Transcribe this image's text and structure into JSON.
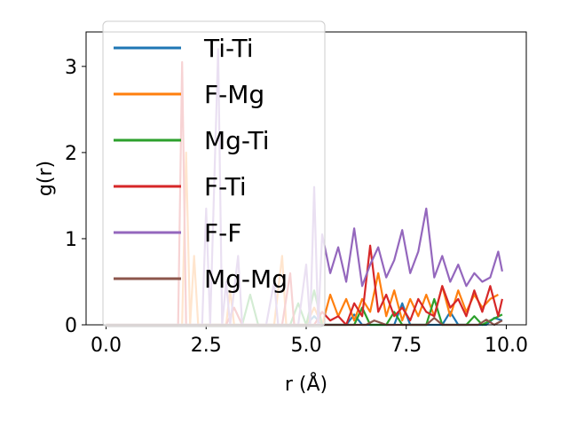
{
  "chart_data": {
    "type": "line",
    "title": "",
    "xlabel": "r (Å)",
    "ylabel": "g(r)",
    "xlim": [
      -0.5,
      10.5
    ],
    "ylim": [
      0,
      3.4
    ],
    "xticks": [
      {
        "value": 0.0,
        "label": "0.0"
      },
      {
        "value": 2.5,
        "label": "2.5"
      },
      {
        "value": 5.0,
        "label": "5.0"
      },
      {
        "value": 7.5,
        "label": "7.5"
      },
      {
        "value": 10.0,
        "label": "10.0"
      }
    ],
    "yticks": [
      {
        "value": 0,
        "label": "0"
      },
      {
        "value": 1,
        "label": "1"
      },
      {
        "value": 2,
        "label": "2"
      },
      {
        "value": 3,
        "label": "3"
      }
    ],
    "grid": false,
    "legend_position": "upper-left",
    "series": [
      {
        "name": "Ti-Ti",
        "color": "#1f77b4",
        "points": [
          [
            0,
            0
          ],
          [
            5.0,
            0
          ],
          [
            5.2,
            0.1
          ],
          [
            5.4,
            0
          ],
          [
            6.0,
            0
          ],
          [
            6.2,
            0.12
          ],
          [
            6.4,
            0
          ],
          [
            7.2,
            0
          ],
          [
            7.4,
            0.25
          ],
          [
            7.6,
            0
          ],
          [
            8.4,
            0
          ],
          [
            8.6,
            0.15
          ],
          [
            8.8,
            0
          ],
          [
            9.5,
            0
          ],
          [
            9.7,
            0.08
          ],
          [
            9.9,
            0.05
          ]
        ]
      },
      {
        "name": "F-Mg",
        "color": "#ff7f0e",
        "points": [
          [
            0,
            0
          ],
          [
            1.9,
            0
          ],
          [
            2.0,
            2.0
          ],
          [
            2.1,
            0
          ],
          [
            2.2,
            0.8
          ],
          [
            2.3,
            0
          ],
          [
            3.0,
            0
          ],
          [
            3.1,
            0.4
          ],
          [
            3.2,
            0
          ],
          [
            4.2,
            0
          ],
          [
            4.4,
            0.8
          ],
          [
            4.5,
            0
          ],
          [
            5.0,
            0
          ],
          [
            5.2,
            0.2
          ],
          [
            5.4,
            0
          ],
          [
            5.6,
            0.35
          ],
          [
            5.8,
            0.1
          ],
          [
            6.0,
            0.3
          ],
          [
            6.2,
            0.05
          ],
          [
            6.4,
            0.3
          ],
          [
            6.6,
            0.15
          ],
          [
            6.8,
            0.6
          ],
          [
            7.0,
            0.1
          ],
          [
            7.2,
            0.4
          ],
          [
            7.4,
            0.05
          ],
          [
            7.6,
            0.3
          ],
          [
            7.8,
            0.1
          ],
          [
            8.0,
            0.35
          ],
          [
            8.2,
            0.1
          ],
          [
            8.4,
            0.45
          ],
          [
            8.6,
            0.1
          ],
          [
            8.8,
            0.4
          ],
          [
            9.0,
            0.15
          ],
          [
            9.2,
            0.35
          ],
          [
            9.4,
            0.2
          ],
          [
            9.6,
            0.3
          ],
          [
            9.8,
            0.35
          ]
        ]
      },
      {
        "name": "Mg-Ti",
        "color": "#2ca02c",
        "points": [
          [
            0,
            0
          ],
          [
            3.4,
            0
          ],
          [
            3.6,
            0.35
          ],
          [
            3.8,
            0
          ],
          [
            4.6,
            0
          ],
          [
            4.8,
            0.25
          ],
          [
            5.0,
            0
          ],
          [
            5.2,
            0.4
          ],
          [
            5.4,
            0
          ],
          [
            6.2,
            0
          ],
          [
            6.4,
            0.2
          ],
          [
            6.6,
            0
          ],
          [
            7.0,
            0
          ],
          [
            7.2,
            0.15
          ],
          [
            7.4,
            0
          ],
          [
            8.0,
            0
          ],
          [
            8.2,
            0.3
          ],
          [
            8.4,
            0
          ],
          [
            9.0,
            0
          ],
          [
            9.2,
            0.1
          ],
          [
            9.4,
            0
          ],
          [
            9.6,
            0.05
          ],
          [
            9.9,
            0.12
          ]
        ]
      },
      {
        "name": "F-Ti",
        "color": "#d62728",
        "points": [
          [
            0,
            0
          ],
          [
            1.8,
            0
          ],
          [
            1.9,
            3.05
          ],
          [
            2.0,
            0
          ],
          [
            3.0,
            0
          ],
          [
            3.2,
            0.2
          ],
          [
            3.4,
            0
          ],
          [
            4.4,
            0
          ],
          [
            4.6,
            0.6
          ],
          [
            4.7,
            0
          ],
          [
            5.2,
            0
          ],
          [
            5.4,
            0.15
          ],
          [
            5.6,
            0.05
          ],
          [
            5.8,
            0.1
          ],
          [
            6.0,
            0
          ],
          [
            6.2,
            0.25
          ],
          [
            6.4,
            0.1
          ],
          [
            6.6,
            0.92
          ],
          [
            6.8,
            0.15
          ],
          [
            7.0,
            0.35
          ],
          [
            7.2,
            0.1
          ],
          [
            7.4,
            0.2
          ],
          [
            7.6,
            0.05
          ],
          [
            7.8,
            0.3
          ],
          [
            8.0,
            0.15
          ],
          [
            8.2,
            0.1
          ],
          [
            8.4,
            0.45
          ],
          [
            8.6,
            0.2
          ],
          [
            8.8,
            0.3
          ],
          [
            9.0,
            0.1
          ],
          [
            9.2,
            0.4
          ],
          [
            9.4,
            0.15
          ],
          [
            9.6,
            0.45
          ],
          [
            9.8,
            0.1
          ],
          [
            9.9,
            0.3
          ]
        ]
      },
      {
        "name": "F-F",
        "color": "#9467bd",
        "points": [
          [
            0,
            0
          ],
          [
            2.4,
            0
          ],
          [
            2.5,
            1.35
          ],
          [
            2.6,
            0
          ],
          [
            2.8,
            3.2
          ],
          [
            2.9,
            0
          ],
          [
            3.0,
            0.5
          ],
          [
            3.1,
            0
          ],
          [
            3.3,
            0.8
          ],
          [
            3.4,
            0
          ],
          [
            4.0,
            0
          ],
          [
            4.2,
            0.5
          ],
          [
            4.3,
            0
          ],
          [
            4.8,
            0
          ],
          [
            5.0,
            0.7
          ],
          [
            5.1,
            0
          ],
          [
            5.2,
            1.6
          ],
          [
            5.3,
            0
          ],
          [
            5.4,
            1.05
          ],
          [
            5.6,
            0.6
          ],
          [
            5.8,
            0.9
          ],
          [
            6.0,
            0.5
          ],
          [
            6.2,
            1.12
          ],
          [
            6.4,
            0.45
          ],
          [
            6.6,
            0.7
          ],
          [
            6.8,
            0.9
          ],
          [
            7.0,
            0.55
          ],
          [
            7.2,
            0.75
          ],
          [
            7.4,
            1.1
          ],
          [
            7.6,
            0.6
          ],
          [
            7.8,
            0.85
          ],
          [
            8.0,
            1.35
          ],
          [
            8.2,
            0.55
          ],
          [
            8.4,
            0.8
          ],
          [
            8.6,
            0.5
          ],
          [
            8.8,
            0.7
          ],
          [
            9.0,
            0.45
          ],
          [
            9.2,
            0.6
          ],
          [
            9.4,
            0.5
          ],
          [
            9.6,
            0.55
          ],
          [
            9.8,
            0.85
          ],
          [
            9.9,
            0.62
          ]
        ]
      },
      {
        "name": "Mg-Mg",
        "color": "#8c564b",
        "points": [
          [
            0,
            0
          ],
          [
            6.5,
            0
          ],
          [
            6.7,
            0.05
          ],
          [
            7.0,
            0
          ],
          [
            8.0,
            0
          ],
          [
            8.2,
            0.08
          ],
          [
            8.4,
            0
          ],
          [
            9.3,
            0
          ],
          [
            9.5,
            0.06
          ],
          [
            9.7,
            0
          ],
          [
            9.9,
            0.05
          ]
        ]
      }
    ]
  }
}
